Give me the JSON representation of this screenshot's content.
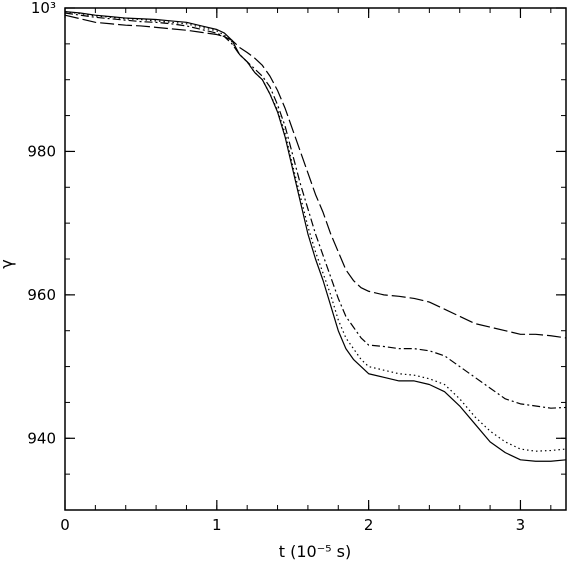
{
  "chart_data": {
    "type": "line",
    "xlabel": "t (10⁻⁵ s)",
    "ylabel": "γ",
    "xlim": [
      0,
      3.3
    ],
    "ylim": [
      930,
      1000
    ],
    "xticks": [
      {
        "value": 0,
        "label": "0"
      },
      {
        "value": 1,
        "label": "1"
      },
      {
        "value": 2,
        "label": "2"
      },
      {
        "value": 3,
        "label": "3"
      }
    ],
    "yticks": [
      {
        "value": 940,
        "label": "940"
      },
      {
        "value": 960,
        "label": "960"
      },
      {
        "value": 980,
        "label": "980"
      },
      {
        "value": 1000,
        "label": "10³"
      }
    ],
    "x_minor_step": 0.2,
    "y_minor_step": 5,
    "grid": false,
    "series": [
      {
        "style": "solid",
        "color": "#000000",
        "x": [
          0,
          0.1,
          0.2,
          0.3,
          0.4,
          0.5,
          0.6,
          0.7,
          0.8,
          0.9,
          1.0,
          1.05,
          1.1,
          1.15,
          1.2,
          1.25,
          1.3,
          1.35,
          1.4,
          1.45,
          1.5,
          1.55,
          1.6,
          1.65,
          1.7,
          1.75,
          1.8,
          1.85,
          1.9,
          1.95,
          2.0,
          2.1,
          2.2,
          2.3,
          2.4,
          2.5,
          2.6,
          2.7,
          2.8,
          2.9,
          3.0,
          3.1,
          3.2,
          3.3
        ],
        "y": [
          999.5,
          999.3,
          999.0,
          998.8,
          998.6,
          998.5,
          998.4,
          998.2,
          998.0,
          997.5,
          997.0,
          996.5,
          995.5,
          993.5,
          992.5,
          991.0,
          990.0,
          988.0,
          985.5,
          982.0,
          977.5,
          973.0,
          968.5,
          965.0,
          962.0,
          958.5,
          955.0,
          952.5,
          951.0,
          950.0,
          949.0,
          948.5,
          948.0,
          948.0,
          947.5,
          946.5,
          944.5,
          942.0,
          939.5,
          938.0,
          937.0,
          936.8,
          936.8,
          937.0
        ]
      },
      {
        "style": "dotted",
        "color": "#000000",
        "x": [
          0,
          0.1,
          0.2,
          0.3,
          0.4,
          0.5,
          0.6,
          0.7,
          0.8,
          0.9,
          1.0,
          1.05,
          1.1,
          1.15,
          1.2,
          1.25,
          1.3,
          1.35,
          1.4,
          1.45,
          1.5,
          1.55,
          1.6,
          1.65,
          1.7,
          1.75,
          1.8,
          1.85,
          1.9,
          1.95,
          2.0,
          2.1,
          2.2,
          2.3,
          2.4,
          2.5,
          2.6,
          2.7,
          2.8,
          2.9,
          3.0,
          3.1,
          3.2,
          3.3
        ],
        "y": [
          999.5,
          999.2,
          998.9,
          998.7,
          998.5,
          998.4,
          998.2,
          998.0,
          997.8,
          997.3,
          996.8,
          996.2,
          995.3,
          993.5,
          992.5,
          991.0,
          990.0,
          988.0,
          985.8,
          982.5,
          978.0,
          973.8,
          969.5,
          966.0,
          963.0,
          960.0,
          956.5,
          954.0,
          952.5,
          951.0,
          950.0,
          949.5,
          949.0,
          948.8,
          948.3,
          947.5,
          945.5,
          943.0,
          941.0,
          939.5,
          938.5,
          938.2,
          938.3,
          938.5
        ]
      },
      {
        "style": "dash-dot",
        "color": "#000000",
        "x": [
          0,
          0.1,
          0.2,
          0.3,
          0.4,
          0.5,
          0.6,
          0.7,
          0.8,
          0.9,
          1.0,
          1.05,
          1.1,
          1.15,
          1.2,
          1.25,
          1.3,
          1.35,
          1.4,
          1.45,
          1.5,
          1.55,
          1.6,
          1.65,
          1.7,
          1.75,
          1.8,
          1.85,
          1.9,
          1.95,
          2.0,
          2.1,
          2.2,
          2.3,
          2.4,
          2.5,
          2.6,
          2.7,
          2.8,
          2.9,
          3.0,
          3.1,
          3.2,
          3.3
        ],
        "y": [
          999.3,
          999.0,
          998.7,
          998.5,
          998.3,
          998.1,
          998.0,
          997.8,
          997.5,
          997.0,
          996.5,
          996.0,
          995.0,
          993.5,
          992.5,
          991.5,
          990.5,
          989.0,
          986.5,
          983.5,
          979.5,
          975.5,
          972.0,
          968.5,
          965.5,
          962.5,
          959.5,
          957.0,
          955.5,
          954.0,
          953.0,
          952.8,
          952.5,
          952.5,
          952.2,
          951.5,
          950.0,
          948.5,
          947.0,
          945.5,
          944.8,
          944.5,
          944.2,
          944.3
        ]
      },
      {
        "style": "long-dash",
        "color": "#000000",
        "x": [
          0,
          0.1,
          0.2,
          0.3,
          0.4,
          0.5,
          0.6,
          0.7,
          0.8,
          0.9,
          1.0,
          1.05,
          1.1,
          1.15,
          1.2,
          1.25,
          1.3,
          1.35,
          1.4,
          1.45,
          1.5,
          1.55,
          1.6,
          1.65,
          1.7,
          1.75,
          1.8,
          1.85,
          1.9,
          1.95,
          2.0,
          2.1,
          2.2,
          2.3,
          2.4,
          2.5,
          2.6,
          2.7,
          2.8,
          2.9,
          3.0,
          3.1,
          3.2,
          3.3
        ],
        "y": [
          999.0,
          998.5,
          998.0,
          997.8,
          997.6,
          997.5,
          997.3,
          997.1,
          996.9,
          996.6,
          996.3,
          996.0,
          995.5,
          994.5,
          993.8,
          993.0,
          992.0,
          990.5,
          988.5,
          986.0,
          983.0,
          980.0,
          977.0,
          974.0,
          971.5,
          968.5,
          966.0,
          963.5,
          962.0,
          961.0,
          960.5,
          960.0,
          959.8,
          959.5,
          959.0,
          958.0,
          957.0,
          956.0,
          955.5,
          955.0,
          954.5,
          954.5,
          954.3,
          954.0
        ]
      }
    ]
  }
}
